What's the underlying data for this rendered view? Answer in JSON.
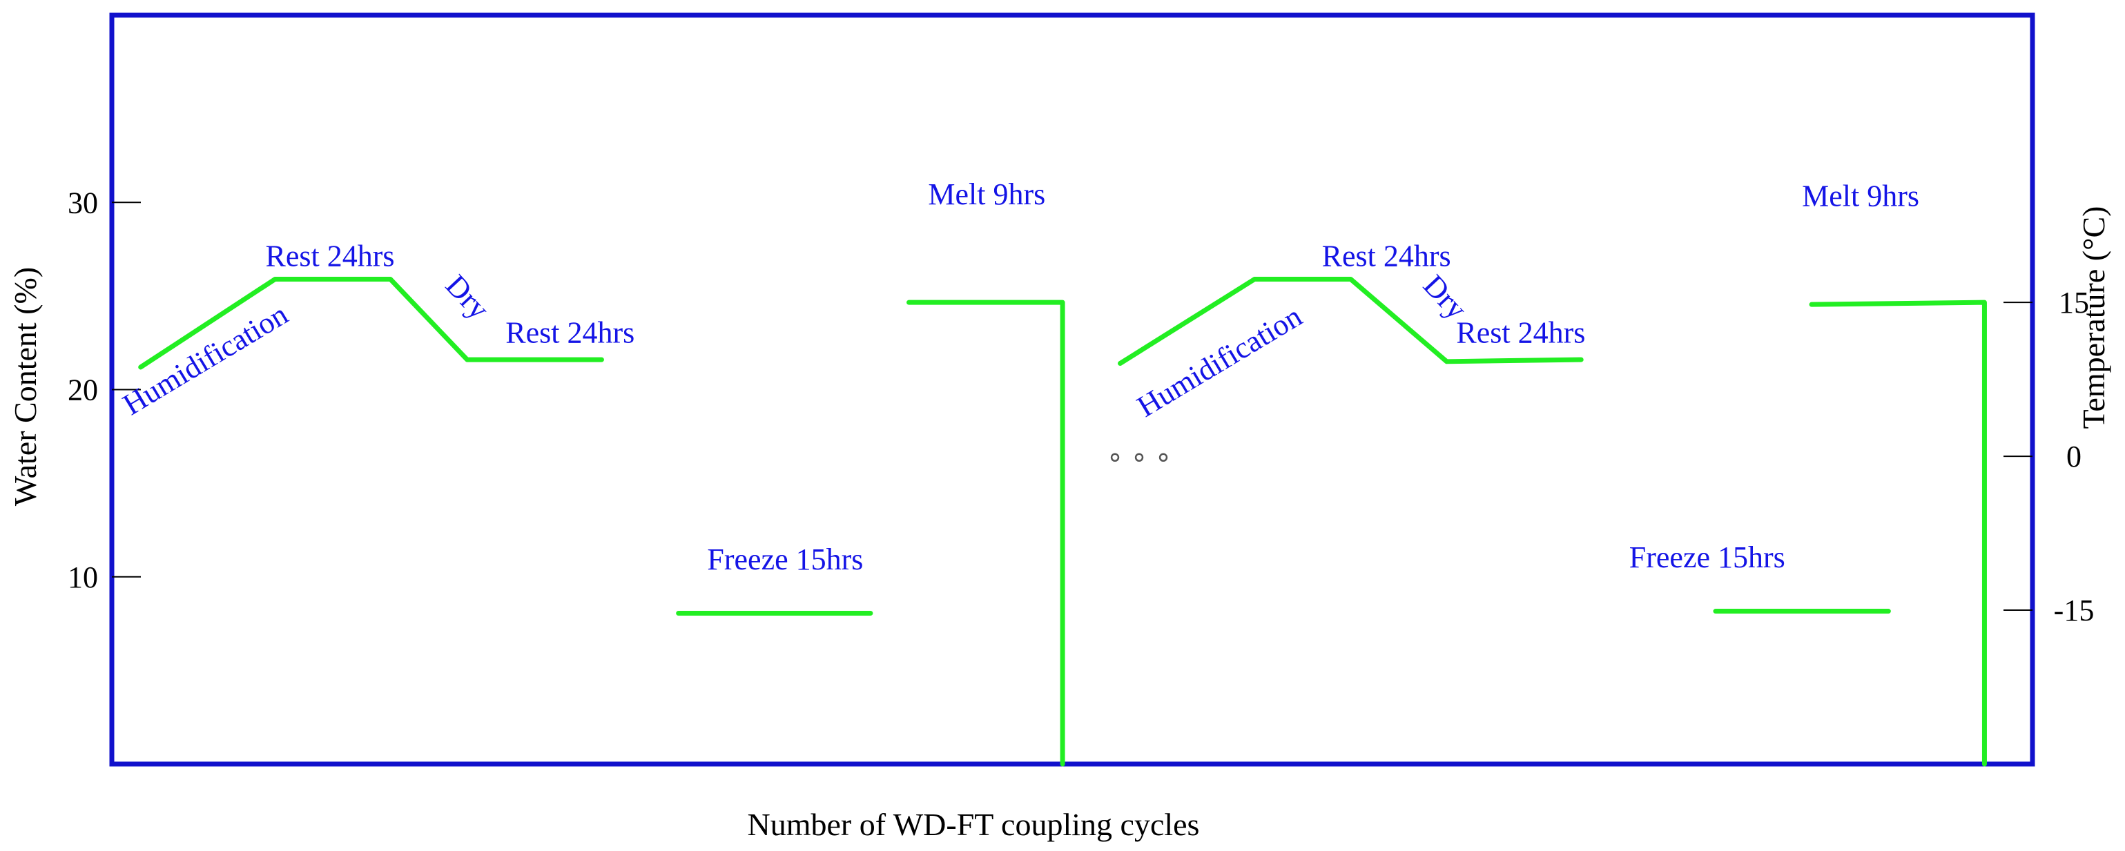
{
  "chart_data": {
    "type": "line",
    "title": "",
    "xlabel": "Number of  WD-FT coupling cycles",
    "ylabel_left": "Water  Content    (%)",
    "ylabel_right": "Temperature    (°C)",
    "left_axis": {
      "ticks": [
        10,
        20,
        30
      ],
      "ylim": [
        0,
        40
      ]
    },
    "right_axis": {
      "ticks": [
        -15,
        0,
        15
      ],
      "ylim": [
        -30,
        43
      ]
    },
    "x_range": [
      0,
      100
    ],
    "grid": false,
    "legend": "none",
    "line_color": "#22ee22",
    "frame_color": "#1111cc",
    "label_color": "#1414e6",
    "ellipsis": "∘ ∘ ∘",
    "wetting_drying_segments": [
      {
        "cycle": 1,
        "axis": "left",
        "points": [
          [
            1.5,
            21.2
          ],
          [
            8.5,
            25.9
          ],
          [
            14.5,
            25.9
          ],
          [
            18.5,
            21.6
          ],
          [
            25.5,
            21.6
          ]
        ]
      },
      {
        "cycle": 2,
        "axis": "left",
        "points": [
          [
            52.5,
            21.4
          ],
          [
            59.5,
            25.9
          ],
          [
            64.5,
            25.9
          ],
          [
            69.5,
            21.5
          ],
          [
            76.5,
            21.6
          ]
        ]
      }
    ],
    "freeze_thaw_segments": [
      {
        "cycle": 1,
        "phase": "freeze",
        "axis": "right",
        "points": [
          [
            29.5,
            -15.3
          ],
          [
            39.5,
            -15.3
          ]
        ]
      },
      {
        "cycle": 1,
        "phase": "melt",
        "axis": "right",
        "points": [
          [
            41.5,
            15
          ],
          [
            49.5,
            15
          ],
          [
            49.5,
            -30
          ]
        ]
      },
      {
        "cycle": 2,
        "phase": "freeze",
        "axis": "right",
        "points": [
          [
            83.5,
            -15.1
          ],
          [
            92.5,
            -15.1
          ]
        ]
      },
      {
        "cycle": 2,
        "phase": "melt",
        "axis": "right",
        "points": [
          [
            88.5,
            14.8
          ],
          [
            97.5,
            15
          ],
          [
            97.5,
            -30
          ]
        ]
      }
    ],
    "annotations": [
      {
        "text": "Humidification",
        "x": 1.0,
        "y": 18.6,
        "rotate": -31
      },
      {
        "text": "Rest 24hrs",
        "x": 8.0,
        "y": 26.6,
        "rotate": 0
      },
      {
        "text": "Dry",
        "x": 17.3,
        "y": 25.5,
        "rotate": 47
      },
      {
        "text": "Rest 24hrs",
        "x": 20.5,
        "y": 22.5,
        "rotate": 0
      },
      {
        "text": "Freeze 15hrs",
        "x": 31.0,
        "y": 10.4,
        "rotate": 0
      },
      {
        "text": "Melt 9hrs",
        "x": 42.5,
        "y": 29.9,
        "rotate": 0
      },
      {
        "text": "Humidification",
        "x": 53.8,
        "y": 18.5,
        "rotate": -31
      },
      {
        "text": "Rest 24hrs",
        "x": 63.0,
        "y": 26.6,
        "rotate": 0
      },
      {
        "text": "Dry",
        "x": 68.2,
        "y": 25.5,
        "rotate": 47
      },
      {
        "text": "Rest 24hrs",
        "x": 70.0,
        "y": 22.5,
        "rotate": 0
      },
      {
        "text": "Freeze 15hrs",
        "x": 79.0,
        "y": 10.5,
        "rotate": 0
      },
      {
        "text": "Melt 9hrs",
        "x": 88.0,
        "y": 29.8,
        "rotate": 0
      }
    ]
  }
}
